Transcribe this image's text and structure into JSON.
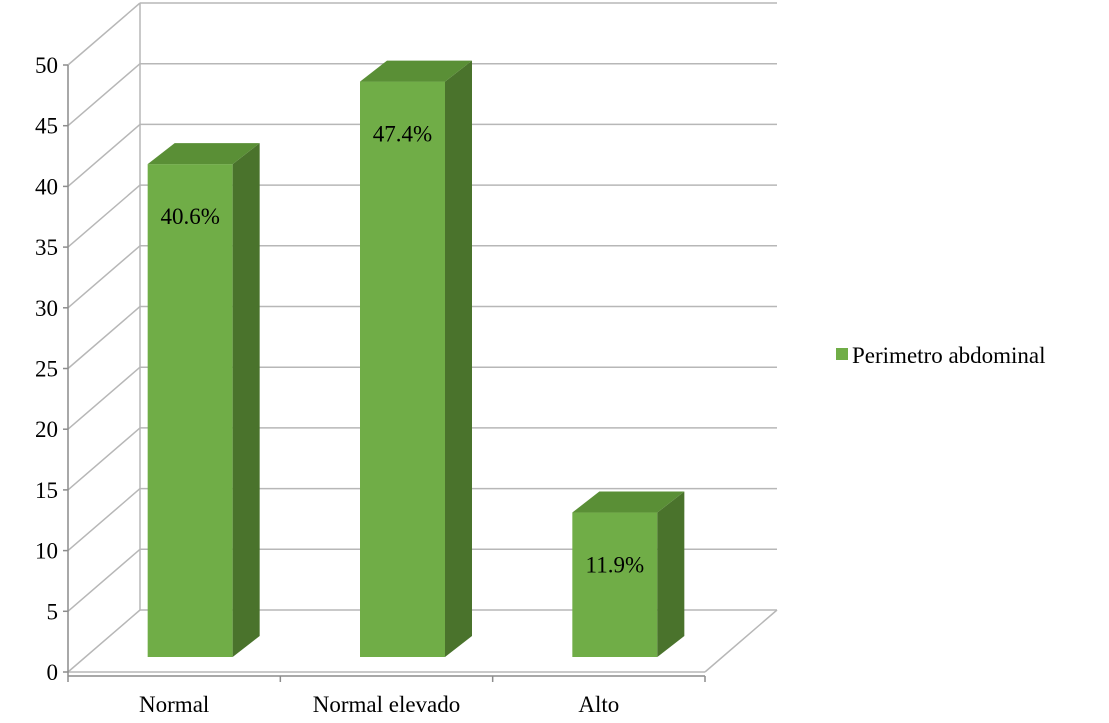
{
  "chart_data": {
    "type": "bar",
    "style": "3d-column",
    "categories": [
      "Normal",
      "Normal elevado",
      "Alto"
    ],
    "series": [
      {
        "name": "Perimetro abdominal",
        "values": [
          40.6,
          47.4,
          11.9
        ],
        "data_labels": [
          "40.6%",
          "47.4%",
          "11.9%"
        ],
        "color": "#70ad47",
        "side_color": "#4a732c",
        "top_color": "#5a8f36"
      }
    ],
    "title": "",
    "xlabel": "",
    "ylabel": "",
    "ylim": [
      0,
      50
    ],
    "yticks": [
      0,
      5,
      10,
      15,
      20,
      25,
      30,
      35,
      40,
      45,
      50
    ],
    "grid": true,
    "legend": "right"
  }
}
